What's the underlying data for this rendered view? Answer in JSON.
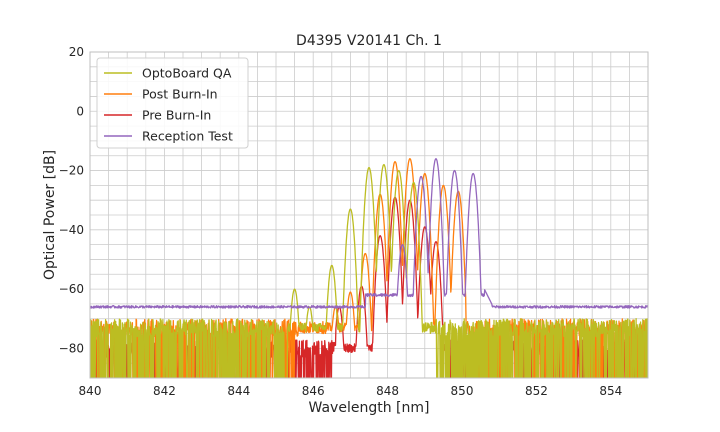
{
  "chart_data": {
    "type": "line",
    "title": "D4395 V20141 Ch. 1",
    "xlabel": "Wavelength [nm]",
    "ylabel": "Optical Power [dB]",
    "xlim": [
      840,
      855
    ],
    "ylim": [
      -90,
      20
    ],
    "xticks": [
      840,
      842,
      844,
      846,
      848,
      850,
      852,
      854
    ],
    "yticks": [
      20,
      0,
      -20,
      -40,
      -60,
      -80
    ],
    "xtick_labels": [
      "840",
      "842",
      "844",
      "846",
      "848",
      "850",
      "852",
      "854"
    ],
    "ytick_labels": [
      "20",
      "0",
      "−20",
      "−40",
      "−60",
      "−80"
    ],
    "minor_grid": true,
    "legend_position": "top-left",
    "series": [
      {
        "name": "OptoBoard QA",
        "color": "#bcbd22",
        "noise_floor": -73,
        "noise_range": [
          840,
          846.2
        ],
        "noise_range_2": [
          849.3,
          855
        ],
        "peaks": [
          {
            "x": 845.5,
            "y": -60
          },
          {
            "x": 845.9,
            "y": -66
          },
          {
            "x": 846.5,
            "y": -52
          },
          {
            "x": 847.0,
            "y": -33
          },
          {
            "x": 847.5,
            "y": -19
          },
          {
            "x": 847.9,
            "y": -18
          },
          {
            "x": 848.3,
            "y": -20
          },
          {
            "x": 848.7,
            "y": -24
          }
        ],
        "edge_low": 845.3,
        "edge_high": 849.0
      },
      {
        "name": "Post Burn-In",
        "color": "#ff7f0e",
        "noise_floor": -73,
        "noise_range": [
          840,
          845.6
        ],
        "noise_range_2": [
          850.2,
          855
        ],
        "peaks": [
          {
            "x": 846.6,
            "y": -66
          },
          {
            "x": 847.0,
            "y": -61
          },
          {
            "x": 847.4,
            "y": -48
          },
          {
            "x": 847.8,
            "y": -28
          },
          {
            "x": 848.2,
            "y": -17
          },
          {
            "x": 848.6,
            "y": -16
          },
          {
            "x": 849.0,
            "y": -21
          },
          {
            "x": 849.5,
            "y": -25
          },
          {
            "x": 849.9,
            "y": -27
          }
        ],
        "edge_low": 846.4,
        "edge_high": 850.1
      },
      {
        "name": "Pre Burn-In",
        "color": "#d62728",
        "noise_floor": -80,
        "noise_range": [
          840,
          846.5
        ],
        "noise_range_2": [
          849.6,
          855
        ],
        "peaks": [
          {
            "x": 846.7,
            "y": -66
          },
          {
            "x": 847.3,
            "y": -59
          },
          {
            "x": 847.8,
            "y": -42
          },
          {
            "x": 848.2,
            "y": -29
          },
          {
            "x": 848.6,
            "y": -30
          },
          {
            "x": 849.0,
            "y": -39
          },
          {
            "x": 849.3,
            "y": -44
          }
        ],
        "edge_low": 846.6,
        "edge_high": 849.5
      },
      {
        "name": "Reception Test",
        "color": "#9467bd",
        "baseline": -66,
        "peaks": [
          {
            "x": 847.6,
            "y": -64
          },
          {
            "x": 848.0,
            "y": -62
          },
          {
            "x": 848.4,
            "y": -45
          },
          {
            "x": 848.9,
            "y": -22
          },
          {
            "x": 849.3,
            "y": -16
          },
          {
            "x": 849.8,
            "y": -20
          },
          {
            "x": 850.3,
            "y": -21
          }
        ],
        "edge_low": 847.4,
        "edge_high": 850.6
      }
    ]
  }
}
